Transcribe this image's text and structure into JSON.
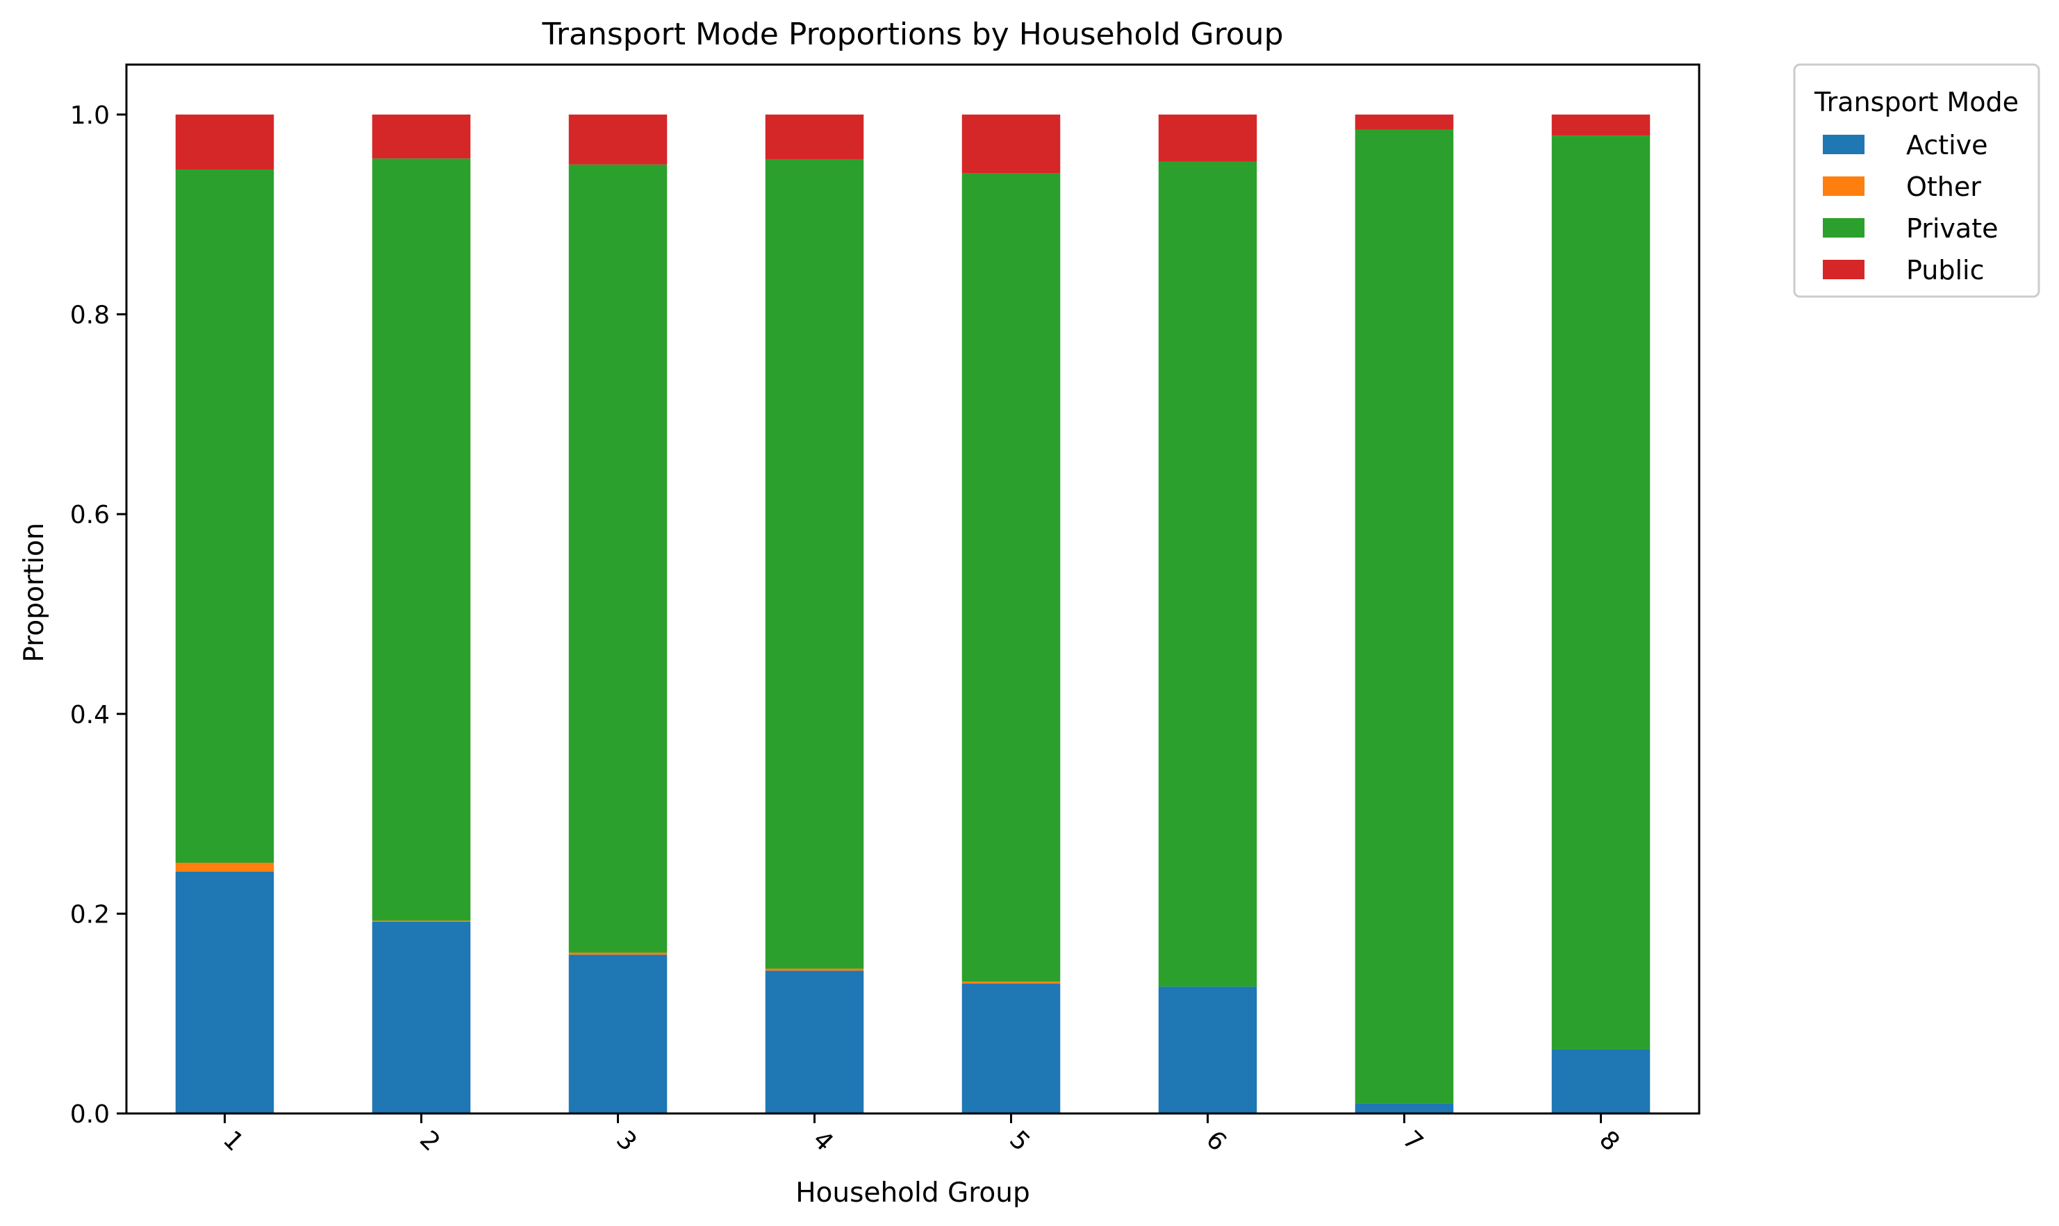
{
  "chart_data": {
    "type": "bar",
    "stacked": true,
    "title": "Transport Mode Proportions by Household Group",
    "xlabel": "Household Group",
    "ylabel": "Proportion",
    "categories": [
      "1",
      "2",
      "3",
      "4",
      "5",
      "6",
      "7",
      "8"
    ],
    "ylim": [
      0,
      1.05
    ],
    "yticks": [
      "0.0",
      "0.2",
      "0.4",
      "0.6",
      "0.8",
      "1.0"
    ],
    "grid": false,
    "legend": {
      "title": "Transport Mode",
      "placement": "outside-top-right"
    },
    "series": [
      {
        "name": "Active",
        "color": "#1f77b4",
        "values": [
          0.242,
          0.192,
          0.159,
          0.143,
          0.13,
          0.127,
          0.01,
          0.064
        ]
      },
      {
        "name": "Other",
        "color": "#ff7f0e",
        "values": [
          0.009,
          0.001,
          0.002,
          0.002,
          0.002,
          0.0,
          0.0,
          0.0
        ]
      },
      {
        "name": "Private",
        "color": "#2ca02c",
        "values": [
          0.694,
          0.763,
          0.789,
          0.81,
          0.809,
          0.826,
          0.975,
          0.915
        ]
      },
      {
        "name": "Public",
        "color": "#d62728",
        "values": [
          0.055,
          0.044,
          0.05,
          0.045,
          0.059,
          0.047,
          0.015,
          0.021
        ]
      }
    ]
  }
}
